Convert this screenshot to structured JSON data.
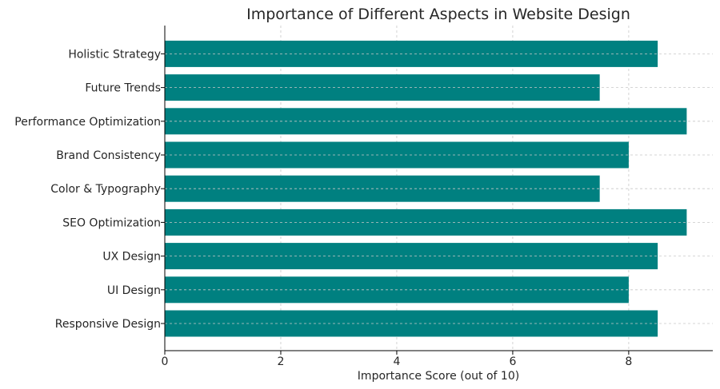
{
  "chart_data": {
    "type": "bar",
    "orientation": "horizontal",
    "title": "Importance of Different Aspects in Website Design",
    "xlabel": "Importance Score (out of 10)",
    "ylabel": "",
    "categories": [
      "Responsive Design",
      "UI Design",
      "UX Design",
      "SEO Optimization",
      "Color & Typography",
      "Brand Consistency",
      "Performance Optimization",
      "Future Trends",
      "Holistic Strategy"
    ],
    "values": [
      8.5,
      8,
      8.5,
      9,
      7.5,
      8,
      9,
      7.5,
      8.5
    ],
    "xlim": [
      0,
      9.45
    ],
    "xticks": [
      0,
      2,
      4,
      6,
      8
    ],
    "grid": true,
    "bar_color": "#008080"
  }
}
